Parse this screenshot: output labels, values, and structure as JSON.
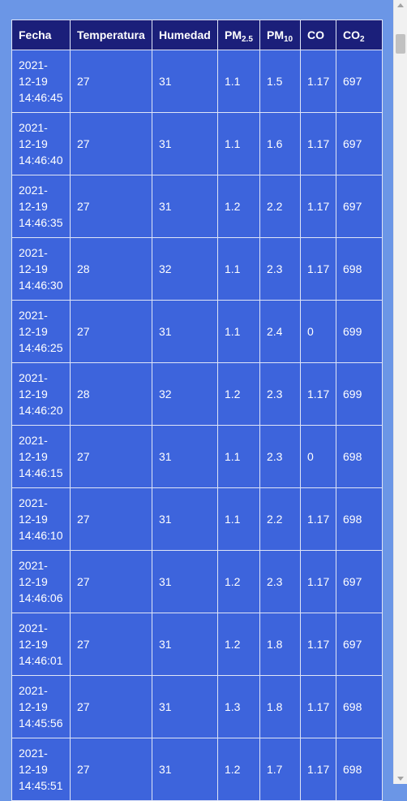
{
  "table": {
    "headers": {
      "fecha": "Fecha",
      "temperatura": "Temperatura",
      "humedad": "Humedad",
      "pm25_base": "PM",
      "pm25_sub": "2.5",
      "pm10_base": "PM",
      "pm10_sub": "10",
      "co": "CO",
      "co2_base": "CO",
      "co2_sub": "2"
    },
    "rows": [
      {
        "fecha": "2021-12-19 14:46:45",
        "temperatura": "27",
        "humedad": "31",
        "pm25": "1.1",
        "pm10": "1.5",
        "co": "1.17",
        "co2": "697"
      },
      {
        "fecha": "2021-12-19 14:46:40",
        "temperatura": "27",
        "humedad": "31",
        "pm25": "1.1",
        "pm10": "1.6",
        "co": "1.17",
        "co2": "697"
      },
      {
        "fecha": "2021-12-19 14:46:35",
        "temperatura": "27",
        "humedad": "31",
        "pm25": "1.2",
        "pm10": "2.2",
        "co": "1.17",
        "co2": "697"
      },
      {
        "fecha": "2021-12-19 14:46:30",
        "temperatura": "28",
        "humedad": "32",
        "pm25": "1.1",
        "pm10": "2.3",
        "co": "1.17",
        "co2": "698"
      },
      {
        "fecha": "2021-12-19 14:46:25",
        "temperatura": "27",
        "humedad": "31",
        "pm25": "1.1",
        "pm10": "2.4",
        "co": "0",
        "co2": "699"
      },
      {
        "fecha": "2021-12-19 14:46:20",
        "temperatura": "28",
        "humedad": "32",
        "pm25": "1.2",
        "pm10": "2.3",
        "co": "1.17",
        "co2": "699"
      },
      {
        "fecha": "2021-12-19 14:46:15",
        "temperatura": "27",
        "humedad": "31",
        "pm25": "1.1",
        "pm10": "2.3",
        "co": "0",
        "co2": "698"
      },
      {
        "fecha": "2021-12-19 14:46:10",
        "temperatura": "27",
        "humedad": "31",
        "pm25": "1.1",
        "pm10": "2.2",
        "co": "1.17",
        "co2": "698"
      },
      {
        "fecha": "2021-12-19 14:46:06",
        "temperatura": "27",
        "humedad": "31",
        "pm25": "1.2",
        "pm10": "2.3",
        "co": "1.17",
        "co2": "697"
      },
      {
        "fecha": "2021-12-19 14:46:01",
        "temperatura": "27",
        "humedad": "31",
        "pm25": "1.2",
        "pm10": "1.8",
        "co": "1.17",
        "co2": "697"
      },
      {
        "fecha": "2021-12-19 14:45:56",
        "temperatura": "27",
        "humedad": "31",
        "pm25": "1.3",
        "pm10": "1.8",
        "co": "1.17",
        "co2": "698"
      },
      {
        "fecha": "2021-12-19 14:45:51",
        "temperatura": "27",
        "humedad": "31",
        "pm25": "1.2",
        "pm10": "1.7",
        "co": "1.17",
        "co2": "698"
      }
    ]
  },
  "colors": {
    "page_background": "#6b96e6",
    "header_background": "#1b1f7a",
    "cell_background": "#3d64dc",
    "grid_line": "#dfe5f7",
    "text": "#ffffff"
  }
}
